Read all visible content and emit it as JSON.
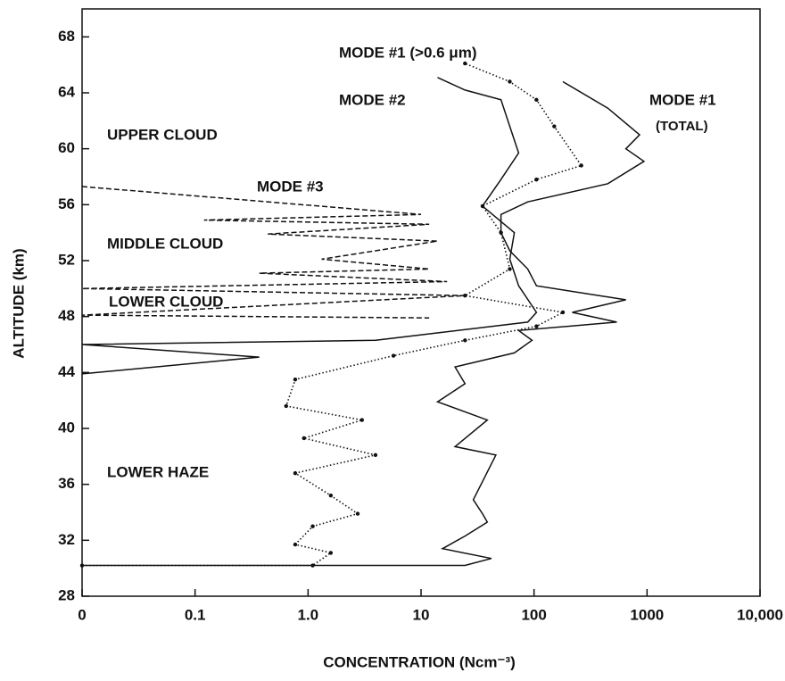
{
  "chart_data": {
    "type": "line",
    "xlabel": "CONCENTRATION (Ncm⁻³)",
    "ylabel": "ALTITUDE (km)",
    "xscale": "log",
    "xlim": [
      0.01,
      10000
    ],
    "xticks": [
      {
        "value": 0.01,
        "label": "0"
      },
      0.1,
      {
        "value": 1,
        "label": "1.0"
      },
      10,
      100,
      1000,
      {
        "value": 10000,
        "label": "10,000"
      }
    ],
    "ylim": [
      28,
      70
    ],
    "yticks": [
      28,
      32,
      36,
      40,
      44,
      48,
      52,
      56,
      60,
      64,
      68
    ],
    "series": [
      {
        "name": "MODE #1",
        "color": "#111111",
        "style": "solid",
        "markers": false,
        "x": [
          0.01,
          24.5,
          42,
          15.5,
          24.5,
          38.6,
          35,
          29,
          46,
          20,
          38.6,
          14,
          24.5,
          20,
          67,
          96,
          73,
          540,
          218,
          650,
          105,
          88,
          61,
          51,
          51,
          88,
          450,
          940,
          650,
          860,
          450,
          180
        ],
        "values": [
          30.2,
          30.2,
          30.7,
          31.4,
          32.3,
          33.3,
          33.9,
          34.9,
          38.1,
          38.7,
          40.6,
          41.9,
          43.2,
          44.4,
          45.4,
          46.3,
          47.0,
          47.6,
          48.3,
          49.2,
          50.2,
          51.4,
          52.7,
          54.0,
          55.3,
          56.2,
          57.5,
          59.1,
          60.0,
          61.0,
          62.9,
          64.8
        ]
      },
      {
        "name": "MODE #1 (>0.6 μm)",
        "color": "#111111",
        "style": "dotted",
        "markers": true,
        "x": [
          0.01,
          1.1,
          1.59,
          0.77,
          1.1,
          2.75,
          1.59,
          0.77,
          3.95,
          0.92,
          3.0,
          0.64,
          0.77,
          5.7,
          24.5,
          105,
          180,
          24.5,
          61,
          51,
          35,
          105,
          262,
          151,
          105,
          61,
          24.5
        ],
        "values": [
          30.2,
          30.2,
          31.1,
          31.7,
          33.0,
          33.9,
          35.2,
          36.8,
          38.1,
          39.3,
          40.6,
          41.6,
          43.5,
          45.2,
          46.3,
          47.3,
          48.3,
          49.5,
          51.4,
          54.0,
          55.9,
          57.8,
          58.8,
          61.6,
          63.5,
          64.8,
          66.1
        ]
      },
      {
        "name": "MODE #2",
        "color": "#111111",
        "style": "solid",
        "markers": false,
        "x": [
          0.01,
          0.37,
          0.01,
          3.95,
          88,
          105,
          73,
          61,
          67,
          35,
          51,
          73,
          61,
          51,
          24.5,
          14
        ],
        "values": [
          43.9,
          45.1,
          46.0,
          46.3,
          47.6,
          48.3,
          50.2,
          52.1,
          54.0,
          55.9,
          57.8,
          59.7,
          61.6,
          63.5,
          64.2,
          65.1
        ]
      },
      {
        "name": "MODE #3",
        "color": "#111111",
        "style": "dashed",
        "markers": false,
        "x": [
          0.01,
          10,
          0.12,
          11.8,
          0.44,
          14,
          1.32,
          11.8,
          0.37,
          17,
          0.01,
          24.5,
          0.01,
          11.8
        ],
        "values": [
          57.3,
          55.3,
          54.9,
          54.6,
          53.9,
          53.4,
          52.1,
          51.4,
          51.1,
          50.5,
          50.0,
          49.5,
          48.1,
          47.9
        ]
      }
    ],
    "annotations": [
      "(TOTAL)",
      "UPPER CLOUD",
      "MIDDLE CLOUD",
      "LOWER CLOUD",
      "LOWER HAZE"
    ]
  }
}
